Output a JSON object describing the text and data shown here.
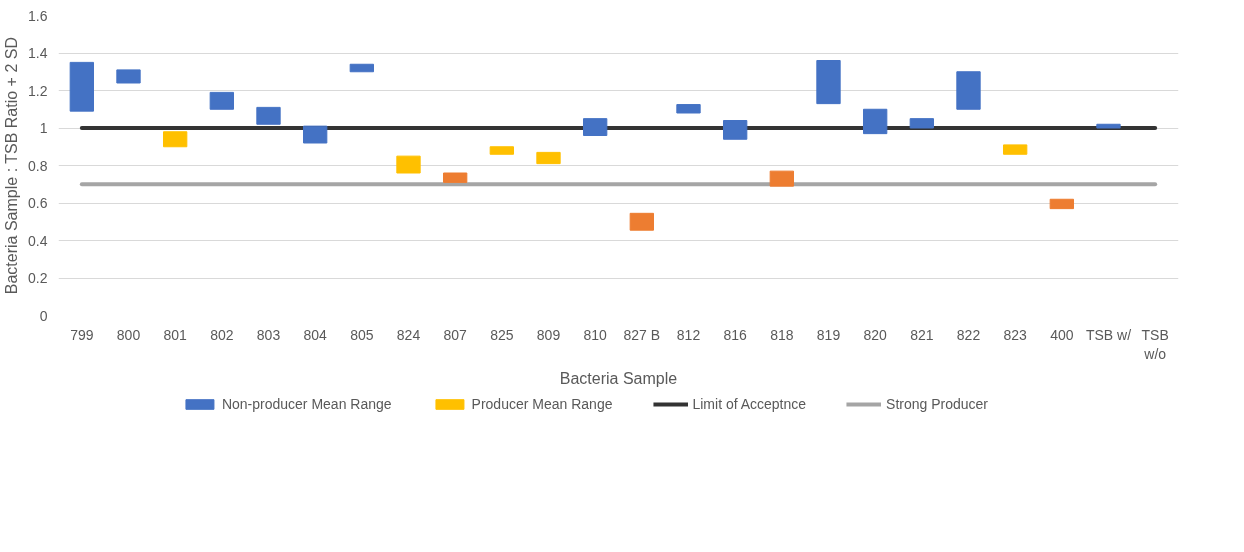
{
  "chart_data": {
    "type": "bar",
    "xlabel": "Bacteria Sample",
    "ylabel": "Bacteria Sample : TSB Ratio + 2 SD",
    "categories": [
      "799",
      "800",
      "801",
      "802",
      "803",
      "804",
      "805",
      "824",
      "807",
      "825",
      "809",
      "810",
      "827 B",
      "812",
      "816",
      "818",
      "819",
      "820",
      "821",
      "822",
      "823",
      "400",
      "TSB w/",
      "TSB w/o"
    ],
    "series": [
      {
        "name": "Non-producer Mean Range",
        "color": "#4472c4",
        "base": [
          1.09,
          1.24,
          null,
          1.1,
          1.02,
          0.92,
          1.3,
          null,
          null,
          null,
          null,
          0.96,
          null,
          1.08,
          0.94,
          null,
          1.13,
          0.97,
          1.0,
          1.1,
          null,
          null,
          1.0,
          null
        ],
        "values": [
          0.26,
          0.07,
          null,
          0.09,
          0.09,
          0.09,
          0.04,
          null,
          null,
          null,
          null,
          0.09,
          null,
          0.045,
          0.1,
          null,
          0.23,
          0.13,
          0.05,
          0.2,
          null,
          null,
          0.02,
          null
        ]
      },
      {
        "name": "Producer Mean Range",
        "color": "#ffc000",
        "base": [
          null,
          null,
          0.9,
          null,
          null,
          null,
          null,
          0.76,
          null,
          0.86,
          0.81,
          null,
          null,
          null,
          null,
          null,
          null,
          null,
          null,
          null,
          0.86,
          null,
          null,
          null
        ],
        "values": [
          null,
          null,
          0.08,
          null,
          null,
          null,
          null,
          0.09,
          null,
          0.04,
          0.06,
          null,
          null,
          null,
          null,
          null,
          null,
          null,
          null,
          null,
          0.05,
          null,
          null,
          null
        ]
      },
      {
        "color": "#ed7d31",
        "base": [
          null,
          null,
          null,
          null,
          null,
          null,
          null,
          null,
          0.71,
          null,
          null,
          null,
          0.455,
          null,
          null,
          0.69,
          null,
          null,
          null,
          null,
          null,
          0.57,
          null,
          null
        ],
        "values": [
          null,
          null,
          null,
          null,
          null,
          null,
          null,
          null,
          0.05,
          null,
          null,
          null,
          0.09,
          null,
          null,
          0.08,
          null,
          null,
          null,
          null,
          null,
          0.05,
          null,
          null
        ]
      }
    ],
    "ref_lines": [
      {
        "axis": "y",
        "value": 1,
        "label": "Limit of Acceptnce",
        "color": "#333333"
      },
      {
        "axis": "y",
        "value": 0.7,
        "label": "Strong Producer",
        "color": "#a5a5a5"
      }
    ],
    "ylim": [
      0,
      1.6
    ],
    "yticks": [
      0,
      0.2,
      0.4,
      0.6,
      0.8,
      1,
      1.2,
      1.4,
      1.6
    ],
    "grid": "y",
    "legend": "bottom"
  }
}
